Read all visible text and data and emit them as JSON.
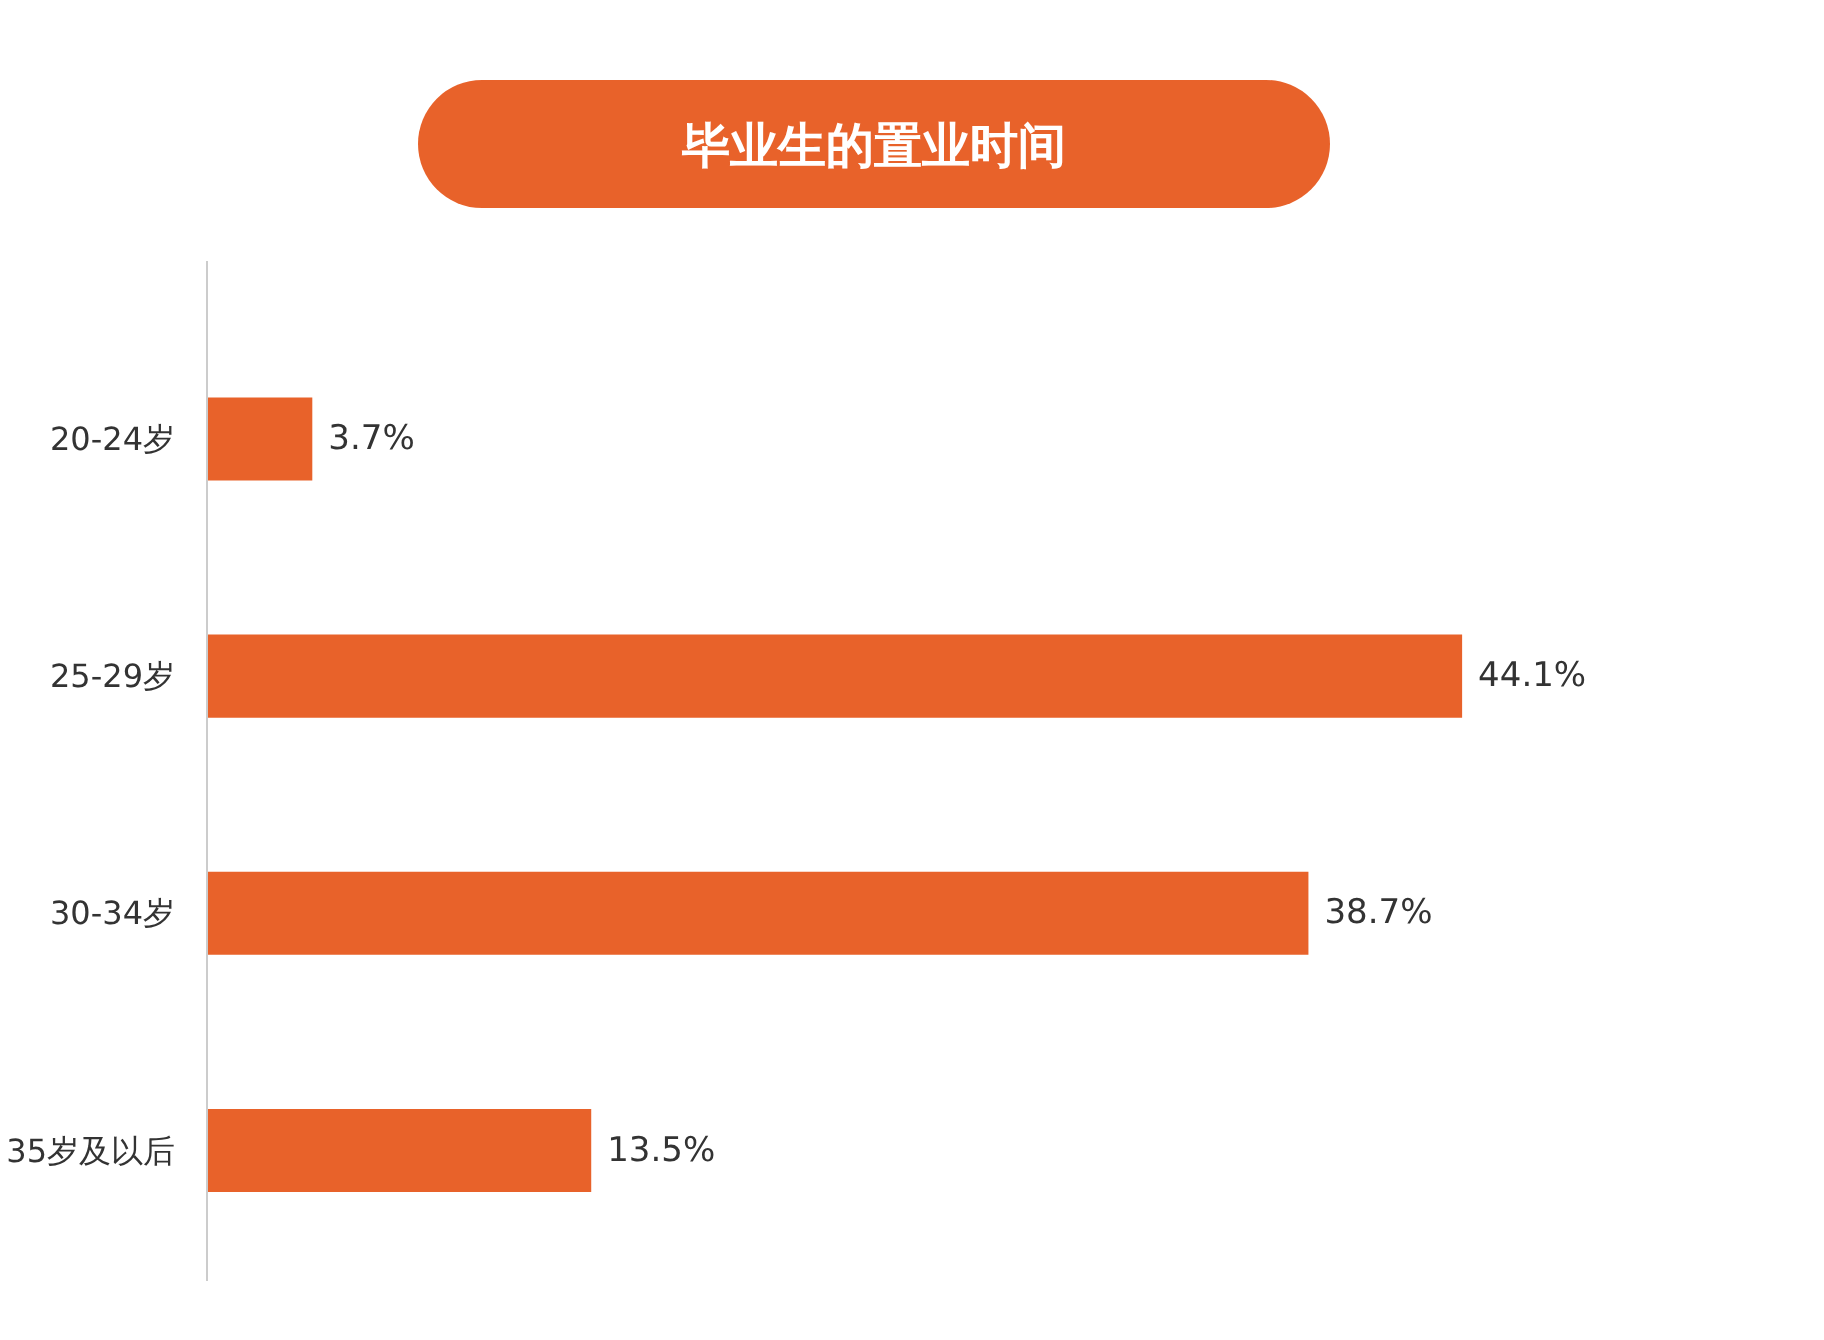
{
  "chart_data": {
    "type": "bar",
    "title": "毕业生的置业时间",
    "orientation": "horizontal",
    "categories": [
      "20-24岁",
      "25-29岁",
      "30-34岁",
      "35岁及以后"
    ],
    "values": [
      3.7,
      44.1,
      38.7,
      13.5
    ],
    "color": "#e8622a",
    "value_labels": [
      "3.7%",
      "44.1%",
      "38.7%",
      "13.5%"
    ],
    "tick_labels": "y"
  }
}
